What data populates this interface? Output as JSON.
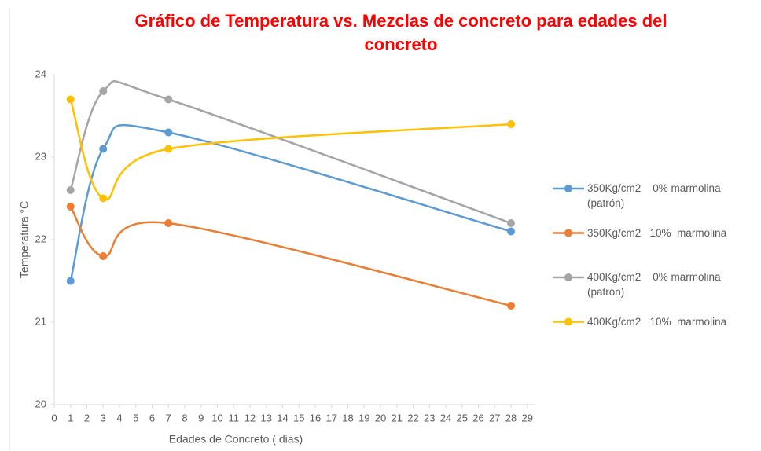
{
  "chart_data": {
    "type": "line",
    "title": "Gráfico de Temperatura vs. Mezclas de concreto para edades del concreto",
    "x_label": "Edades de Concreto ( dias)",
    "y_label": "Temperatura °C",
    "x": [
      1,
      3,
      7,
      28
    ],
    "series": [
      {
        "name": "350Kg/cm2    0% marmolina (patrón)",
        "color": "#5b9bd5",
        "values": [
          21.5,
          23.1,
          23.3,
          22.1
        ]
      },
      {
        "name": "350Kg/cm2   10%  marmolina",
        "color": "#ed7d31",
        "values": [
          22.4,
          21.8,
          22.2,
          21.2
        ]
      },
      {
        "name": "400Kg/cm2    0% marmolina (patrón)",
        "color": "#a5a5a5",
        "values": [
          22.6,
          23.8,
          23.7,
          22.2
        ]
      },
      {
        "name": "400Kg/cm2   10%  marmolina",
        "color": "#ffc000",
        "values": [
          23.7,
          22.5,
          23.1,
          23.4
        ]
      }
    ],
    "xlim": [
      0,
      29
    ],
    "xticks": [
      0,
      1,
      2,
      3,
      4,
      5,
      6,
      7,
      8,
      9,
      10,
      11,
      12,
      13,
      14,
      15,
      16,
      17,
      18,
      19,
      20,
      21,
      22,
      23,
      24,
      25,
      26,
      27,
      28,
      29
    ],
    "ylim": [
      20,
      24
    ],
    "yticks": [
      20,
      21,
      22,
      23,
      24
    ],
    "grid": false,
    "smooth": true,
    "legend": "right"
  }
}
